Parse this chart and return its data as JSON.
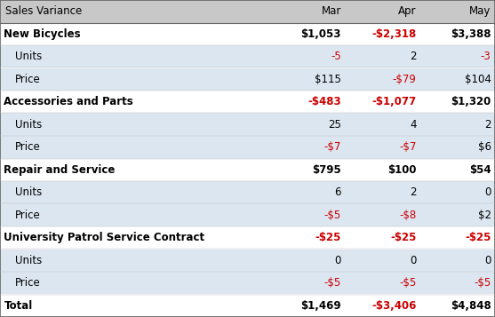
{
  "title": "Sales Variance",
  "col_headers": [
    "Mar",
    "Apr",
    "May"
  ],
  "rows": [
    {
      "label": "New Bicycles",
      "values": [
        "$1,053",
        "-$2,318",
        "$3,388"
      ],
      "negative": [
        false,
        true,
        false
      ],
      "indent": false,
      "bold": true,
      "bg": "#ffffff"
    },
    {
      "label": "Units",
      "values": [
        "-5",
        "2",
        "-3"
      ],
      "negative": [
        true,
        false,
        true
      ],
      "indent": true,
      "bold": false,
      "bg": "#dce6f1"
    },
    {
      "label": "Price",
      "values": [
        "$115",
        "-$79",
        "$104"
      ],
      "negative": [
        false,
        true,
        false
      ],
      "indent": true,
      "bold": false,
      "bg": "#dce6f1"
    },
    {
      "label": "Accessories and Parts",
      "values": [
        "-$483",
        "-$1,077",
        "$1,320"
      ],
      "negative": [
        true,
        true,
        false
      ],
      "indent": false,
      "bold": true,
      "bg": "#ffffff"
    },
    {
      "label": "Units",
      "values": [
        "25",
        "4",
        "2"
      ],
      "negative": [
        false,
        false,
        false
      ],
      "indent": true,
      "bold": false,
      "bg": "#dce6f1"
    },
    {
      "label": "Price",
      "values": [
        "-$7",
        "-$7",
        "$6"
      ],
      "negative": [
        true,
        true,
        false
      ],
      "indent": true,
      "bold": false,
      "bg": "#dce6f1"
    },
    {
      "label": "Repair and Service",
      "values": [
        "$795",
        "$100",
        "$54"
      ],
      "negative": [
        false,
        false,
        false
      ],
      "indent": false,
      "bold": true,
      "bg": "#ffffff"
    },
    {
      "label": "Units",
      "values": [
        "6",
        "2",
        "0"
      ],
      "negative": [
        false,
        false,
        false
      ],
      "indent": true,
      "bold": false,
      "bg": "#dce6f1"
    },
    {
      "label": "Price",
      "values": [
        "-$5",
        "-$8",
        "$2"
      ],
      "negative": [
        true,
        true,
        false
      ],
      "indent": true,
      "bold": false,
      "bg": "#dce6f1"
    },
    {
      "label": "University Patrol Service Contract",
      "values": [
        "-$25",
        "-$25",
        "-$25"
      ],
      "negative": [
        true,
        true,
        true
      ],
      "indent": false,
      "bold": true,
      "bg": "#ffffff"
    },
    {
      "label": "Units",
      "values": [
        "0",
        "0",
        "0"
      ],
      "negative": [
        false,
        false,
        false
      ],
      "indent": true,
      "bold": false,
      "bg": "#dce6f1"
    },
    {
      "label": "Price",
      "values": [
        "-$5",
        "-$5",
        "-$5"
      ],
      "negative": [
        true,
        true,
        true
      ],
      "indent": true,
      "bold": false,
      "bg": "#dce6f1"
    },
    {
      "label": "Total",
      "values": [
        "$1,469",
        "-$3,406",
        "$4,848"
      ],
      "negative": [
        false,
        true,
        false
      ],
      "indent": false,
      "bold": true,
      "bg": "#ffffff"
    }
  ],
  "header_bg": "#c8c8c8",
  "header_text_color": "#000000",
  "positive_color": "#000000",
  "negative_color": "#cc0000",
  "font_size": 8.5,
  "header_font_size": 8.5,
  "fig_width": 5.57,
  "fig_height": 3.57,
  "dpi": 100
}
